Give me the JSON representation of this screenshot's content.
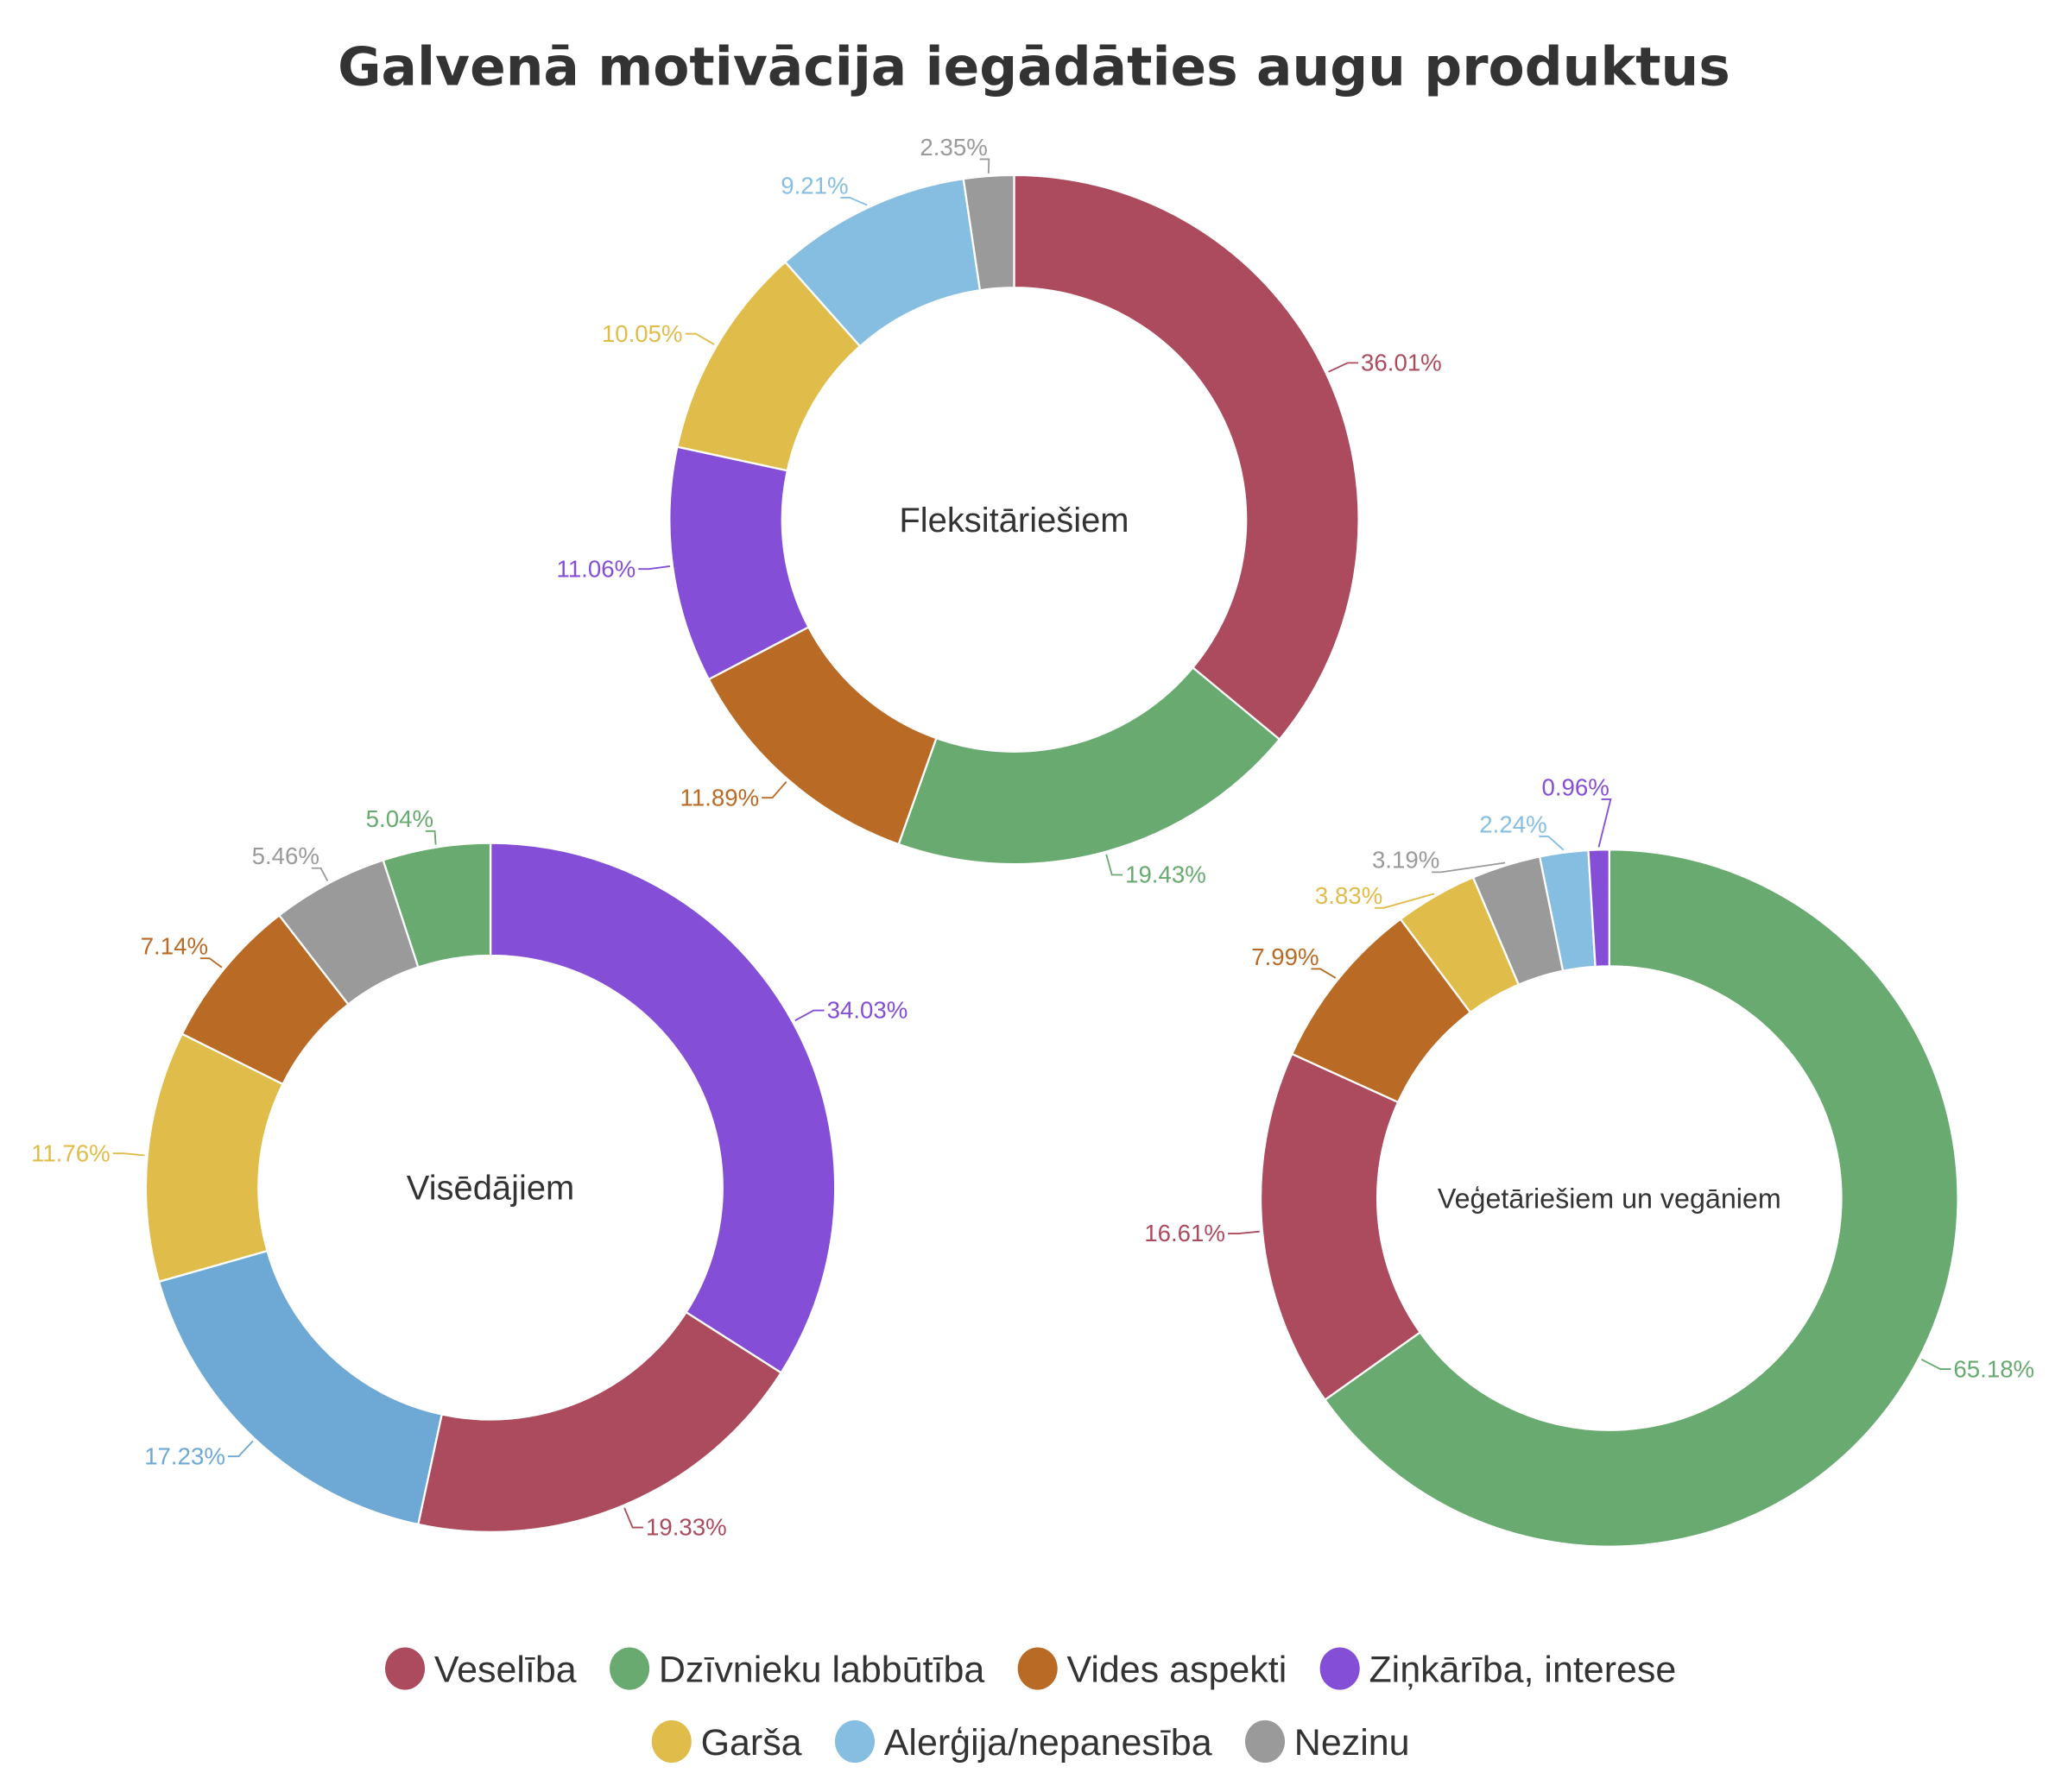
{
  "chart_data": [
    {
      "type": "pie",
      "variant": "donut",
      "title": "Galvenā motivācija iegādāties augu produktus",
      "center_label": "Fleksitāriešiem",
      "slices": [
        {
          "name": "Veselība",
          "value": 36.01,
          "label": "36.01%"
        },
        {
          "name": "Dzīvnieku labbūtība",
          "value": 19.43,
          "label": "19.43%"
        },
        {
          "name": "Vides aspekti",
          "value": 11.89,
          "label": "11.89%"
        },
        {
          "name": "Ziņkārība, interese",
          "value": 11.06,
          "label": "11.06%"
        },
        {
          "name": "Garša",
          "value": 10.05,
          "label": "10.05%"
        },
        {
          "name": "Alerģija/nepanesība",
          "value": 9.21,
          "label": "9.21%"
        },
        {
          "name": "Nezinu",
          "value": 2.35,
          "label": "2.35%"
        }
      ]
    },
    {
      "type": "pie",
      "variant": "donut",
      "center_label": "Visēdājiem",
      "slices": [
        {
          "name": "Ziņkārība, interese",
          "value": 34.03,
          "label": "34.03%"
        },
        {
          "name": "Veselība",
          "value": 19.33,
          "label": "19.33%"
        },
        {
          "name": "Alerģija/nepanesība",
          "value": 17.23,
          "label": "17.23%",
          "color": "#6ea8d4"
        },
        {
          "name": "Garša",
          "value": 11.76,
          "label": "11.76%"
        },
        {
          "name": "Vides aspekti",
          "value": 7.14,
          "label": "7.14%"
        },
        {
          "name": "Nezinu",
          "value": 5.46,
          "label": "5.46%"
        },
        {
          "name": "Dzīvnieku labbūtība",
          "value": 5.04,
          "label": "5.04%"
        }
      ]
    },
    {
      "type": "pie",
      "variant": "donut",
      "center_label": "Veģetāriešiem un vegāniem",
      "slices": [
        {
          "name": "Dzīvnieku labbūtība",
          "value": 65.18,
          "label": "65.18%"
        },
        {
          "name": "Veselība",
          "value": 16.61,
          "label": "16.61%"
        },
        {
          "name": "Vides aspekti",
          "value": 7.99,
          "label": "7.99%"
        },
        {
          "name": "Garša",
          "value": 3.83,
          "label": "3.83%"
        },
        {
          "name": "Nezinu",
          "value": 3.19,
          "label": "3.19%"
        },
        {
          "name": "Alerģija/nepanesība",
          "value": 2.24,
          "label": "2.24%"
        },
        {
          "name": "Ziņkārība, interese",
          "value": 0.96,
          "label": "0.96%"
        }
      ]
    }
  ],
  "legend": {
    "placement": "bottom",
    "items": [
      {
        "name": "Veselība",
        "color": "#ad4b5e"
      },
      {
        "name": "Dzīvnieku labbūtība",
        "color": "#68aa70"
      },
      {
        "name": "Vides aspekti",
        "color": "#b96a25"
      },
      {
        "name": "Ziņkārība, interese",
        "color": "#844fd6"
      },
      {
        "name": "Garša",
        "color": "#e0bd4a"
      },
      {
        "name": "Alerģija/nepanesība",
        "color": "#86bee2"
      },
      {
        "name": "Nezinu",
        "color": "#9a9a9a"
      }
    ]
  }
}
